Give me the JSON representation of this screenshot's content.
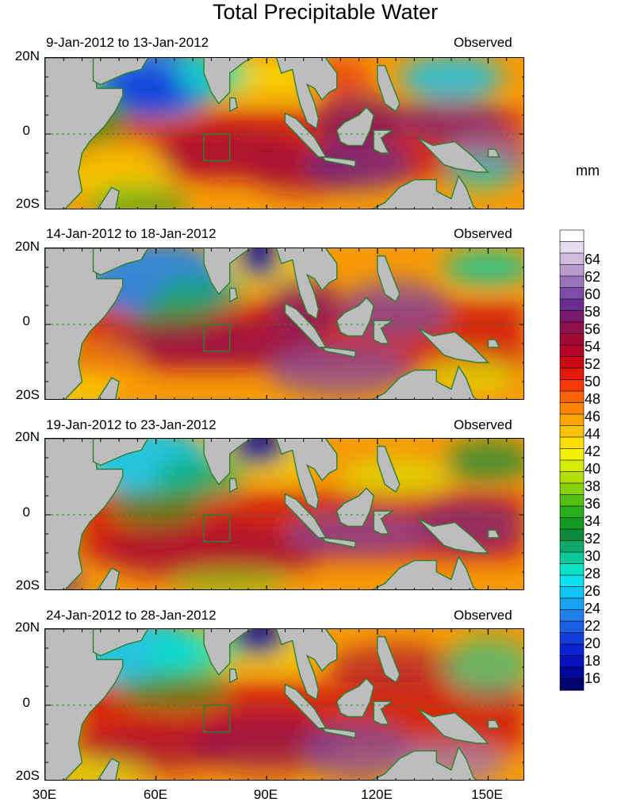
{
  "chart_data": {
    "type": "heatmap",
    "title": "Total Precipitable Water",
    "units": "mm",
    "panel_tag": "Observed",
    "panels": [
      {
        "date_range": "9-Jan-2012 to 13-Jan-2012",
        "tag": "Observed"
      },
      {
        "date_range": "14-Jan-2012 to 18-Jan-2012",
        "tag": "Observed"
      },
      {
        "date_range": "19-Jan-2012 to 23-Jan-2012",
        "tag": "Observed"
      },
      {
        "date_range": "24-Jan-2012 to 28-Jan-2012",
        "tag": "Observed"
      }
    ],
    "lat_ticks": [
      "20N",
      "0",
      "20S"
    ],
    "lon_ticks": [
      "30E",
      "60E",
      "90E",
      "120E",
      "150E"
    ],
    "lon_range": [
      30,
      160
    ],
    "lat_range": [
      -20,
      20
    ],
    "colorbar_labels": [
      "64",
      "62",
      "60",
      "58",
      "56",
      "54",
      "52",
      "50",
      "48",
      "46",
      "44",
      "42",
      "40",
      "38",
      "36",
      "34",
      "32",
      "30",
      "28",
      "26",
      "24",
      "22",
      "20",
      "18",
      "16"
    ],
    "colorbar_colors": [
      "#ffffff",
      "#e6dcef",
      "#cfbcdf",
      "#b79bcf",
      "#9a74bb",
      "#7e4da7",
      "#6a2e8f",
      "#7a1a6b",
      "#8e124e",
      "#a20a36",
      "#b40628",
      "#cc0a14",
      "#e41a0c",
      "#f53a08",
      "#fa6206",
      "#fb8604",
      "#fca603",
      "#fcc402",
      "#fddf02",
      "#f4f002",
      "#d6ec04",
      "#b2e006",
      "#86d20c",
      "#56c114",
      "#2aae1c",
      "#129a22",
      "#0d8a3a",
      "#0ca96a",
      "#0cc89a",
      "#0be2c6",
      "#08e2ee",
      "#10c4f4",
      "#1aa2f0",
      "#2280ea",
      "#1c5ee2",
      "#143edc",
      "#0a24d2",
      "#0612bc",
      "#04089a",
      "#02056e"
    ]
  }
}
